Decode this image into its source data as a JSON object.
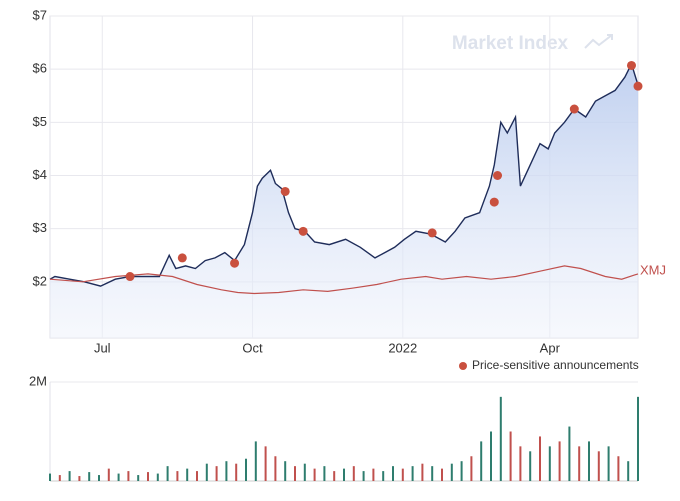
{
  "chart_data": [
    {
      "type": "line",
      "watermark": "Market Index",
      "xlim": [
        0,
        360
      ],
      "ylim": [
        1,
        7
      ],
      "xticks": [
        {
          "value": 32,
          "label": "Jul"
        },
        {
          "value": 124,
          "label": "Oct"
        },
        {
          "value": 216,
          "label": "2022"
        },
        {
          "value": 306,
          "label": "Apr"
        }
      ],
      "yticks": [
        {
          "value": 2,
          "label": "$2"
        },
        {
          "value": 3,
          "label": "$3"
        },
        {
          "value": 4,
          "label": "$4"
        },
        {
          "value": 5,
          "label": "$5"
        },
        {
          "value": 6,
          "label": "$6"
        },
        {
          "value": 7,
          "label": "$7"
        }
      ],
      "grid": true,
      "series": [
        {
          "color": "#1f2d5a",
          "area": true,
          "x": [
            0,
            3,
            12,
            21,
            31,
            40,
            49,
            58,
            67,
            73,
            77,
            83,
            89,
            95,
            101,
            107,
            113,
            119,
            124,
            127,
            130,
            135,
            138,
            142,
            146,
            150,
            156,
            162,
            171,
            181,
            190,
            199,
            205,
            211,
            217,
            224,
            233,
            242,
            248,
            254,
            263,
            269,
            272,
            276,
            280,
            285,
            288,
            294,
            300,
            305,
            309,
            315,
            321,
            328,
            334,
            340,
            346,
            352,
            356,
            360
          ],
          "values": [
            2.05,
            2.1,
            2.05,
            2.0,
            1.92,
            2.05,
            2.1,
            2.1,
            2.1,
            2.5,
            2.25,
            2.3,
            2.25,
            2.4,
            2.45,
            2.55,
            2.4,
            2.7,
            3.3,
            3.8,
            3.95,
            4.1,
            3.85,
            3.75,
            3.3,
            3.0,
            2.95,
            2.75,
            2.7,
            2.8,
            2.65,
            2.45,
            2.55,
            2.65,
            2.8,
            2.95,
            2.9,
            2.75,
            2.95,
            3.2,
            3.3,
            3.8,
            4.2,
            5.0,
            4.8,
            5.1,
            3.8,
            4.2,
            4.6,
            4.5,
            4.8,
            5.0,
            5.25,
            5.1,
            5.4,
            5.5,
            5.6,
            5.85,
            6.1,
            5.7
          ]
        },
        {
          "name": "XMJ",
          "color": "#c0504d",
          "x": [
            0,
            20,
            40,
            60,
            75,
            90,
            105,
            115,
            125,
            140,
            155,
            170,
            185,
            200,
            215,
            230,
            240,
            255,
            270,
            285,
            300,
            315,
            325,
            340,
            350,
            360
          ],
          "values": [
            2.05,
            2.0,
            2.1,
            2.15,
            2.1,
            1.95,
            1.85,
            1.8,
            1.78,
            1.8,
            1.85,
            1.82,
            1.88,
            1.95,
            2.05,
            2.1,
            2.05,
            2.1,
            2.05,
            2.1,
            2.2,
            2.3,
            2.25,
            2.1,
            2.05,
            2.15
          ]
        },
        {
          "name": "Price-sensitive announcements",
          "type": "scatter",
          "color": "#c9503e",
          "x": [
            49,
            81,
            113,
            144,
            155,
            234,
            272,
            274,
            321,
            356,
            360
          ],
          "values": [
            2.1,
            2.45,
            2.35,
            3.7,
            2.95,
            2.92,
            3.5,
            4.0,
            5.25,
            6.07,
            5.68
          ]
        }
      ]
    },
    {
      "type": "bar",
      "xlim": [
        0,
        360
      ],
      "ylim": [
        0,
        2000000
      ],
      "yticks": [
        {
          "value": 2000000,
          "label": "2M"
        }
      ],
      "x": [
        0,
        6,
        12,
        18,
        24,
        30,
        36,
        42,
        48,
        54,
        60,
        66,
        72,
        78,
        84,
        90,
        96,
        102,
        108,
        114,
        120,
        126,
        132,
        138,
        144,
        150,
        156,
        162,
        168,
        174,
        180,
        186,
        192,
        198,
        204,
        210,
        216,
        222,
        228,
        234,
        240,
        246,
        252,
        258,
        264,
        270,
        276,
        282,
        288,
        294,
        300,
        306,
        312,
        318,
        324,
        330,
        336,
        342,
        348,
        354,
        360
      ],
      "values": [
        150000,
        120000,
        200000,
        100000,
        180000,
        120000,
        250000,
        150000,
        200000,
        120000,
        180000,
        150000,
        300000,
        200000,
        250000,
        200000,
        350000,
        300000,
        400000,
        350000,
        450000,
        800000,
        700000,
        500000,
        400000,
        300000,
        350000,
        250000,
        300000,
        200000,
        250000,
        300000,
        200000,
        250000,
        200000,
        300000,
        250000,
        300000,
        350000,
        300000,
        250000,
        350000,
        400000,
        500000,
        800000,
        1000000,
        1700000,
        1000000,
        700000,
        600000,
        900000,
        700000,
        800000,
        1100000,
        700000,
        800000,
        600000,
        700000,
        500000,
        400000,
        1700000
      ],
      "colors": [
        "#2e7d6e",
        "#c0504d",
        "#2e7d6e",
        "#c0504d",
        "#2e7d6e",
        "#2e7d6e",
        "#c0504d",
        "#2e7d6e",
        "#c0504d",
        "#2e7d6e",
        "#c0504d",
        "#2e7d6e",
        "#2e7d6e",
        "#c0504d",
        "#2e7d6e",
        "#c0504d",
        "#2e7d6e",
        "#c0504d",
        "#2e7d6e",
        "#c0504d",
        "#2e7d6e",
        "#2e7d6e",
        "#c0504d",
        "#c0504d",
        "#2e7d6e",
        "#c0504d",
        "#2e7d6e",
        "#c0504d",
        "#2e7d6e",
        "#c0504d",
        "#2e7d6e",
        "#c0504d",
        "#2e7d6e",
        "#c0504d",
        "#2e7d6e",
        "#2e7d6e",
        "#c0504d",
        "#2e7d6e",
        "#c0504d",
        "#2e7d6e",
        "#c0504d",
        "#2e7d6e",
        "#2e7d6e",
        "#c0504d",
        "#2e7d6e",
        "#2e7d6e",
        "#2e7d6e",
        "#c0504d",
        "#c0504d",
        "#2e7d6e",
        "#c0504d",
        "#2e7d6e",
        "#c0504d",
        "#2e7d6e",
        "#c0504d",
        "#2e7d6e",
        "#c0504d",
        "#2e7d6e",
        "#c0504d",
        "#2e7d6e",
        "#2e7d6e"
      ]
    }
  ]
}
